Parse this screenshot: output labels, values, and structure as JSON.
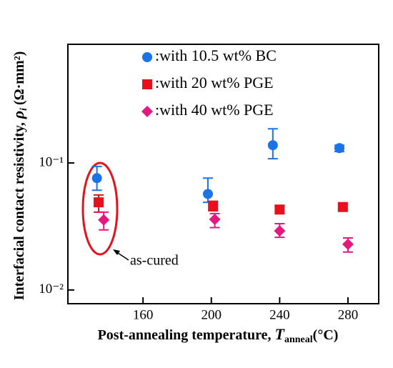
{
  "chart_data": {
    "type": "scatter",
    "xlabel": {
      "text": "Post-annealing temperature, ",
      "symbol": "T",
      "subscript": "anneal",
      "unit": "(°C)"
    },
    "ylabel": {
      "text": "Interfacial contact resistivity, ",
      "symbol": "ρ",
      "subscript": "i",
      "unit": "(Ω·mm²)"
    },
    "xlim": [
      116,
      298
    ],
    "xticks": [
      160,
      200,
      240,
      280
    ],
    "ylim": [
      0.0078,
      0.86
    ],
    "yscale": "log",
    "yticks": [
      {
        "value": 0.01,
        "label": "10⁻²"
      },
      {
        "value": 0.1,
        "label": "10⁻¹"
      }
    ],
    "legend": "upper right",
    "series": [
      {
        "name": ":with 10.5 wt% BC",
        "color": "#1a73e8",
        "marker": "circle",
        "x": [
          133,
          198,
          236,
          275
        ],
        "values": [
          0.076,
          0.057,
          0.138,
          0.131
        ],
        "lower": [
          0.061,
          0.049,
          0.108,
          0.123
        ],
        "upper": [
          0.094,
          0.076,
          0.186,
          0.138
        ]
      },
      {
        "name": ":with 20 wt% PGE",
        "color": "#e8101c",
        "marker": "square",
        "x": [
          134,
          201,
          240,
          277
        ],
        "values": [
          0.049,
          0.046,
          0.043,
          0.045
        ],
        "lower": [
          0.041,
          0.042,
          0.04,
          0.043
        ],
        "upper": [
          0.056,
          0.05,
          0.046,
          0.047
        ]
      },
      {
        "name": ":with 40 wt% PGE",
        "color": "#e6177f",
        "marker": "diamond",
        "x": [
          137,
          202,
          240,
          280
        ],
        "values": [
          0.0356,
          0.036,
          0.0292,
          0.0229
        ],
        "lower": [
          0.0297,
          0.031,
          0.026,
          0.0199
        ],
        "upper": [
          0.041,
          0.04,
          0.0333,
          0.0257
        ]
      }
    ],
    "annotation": "as-cured"
  }
}
